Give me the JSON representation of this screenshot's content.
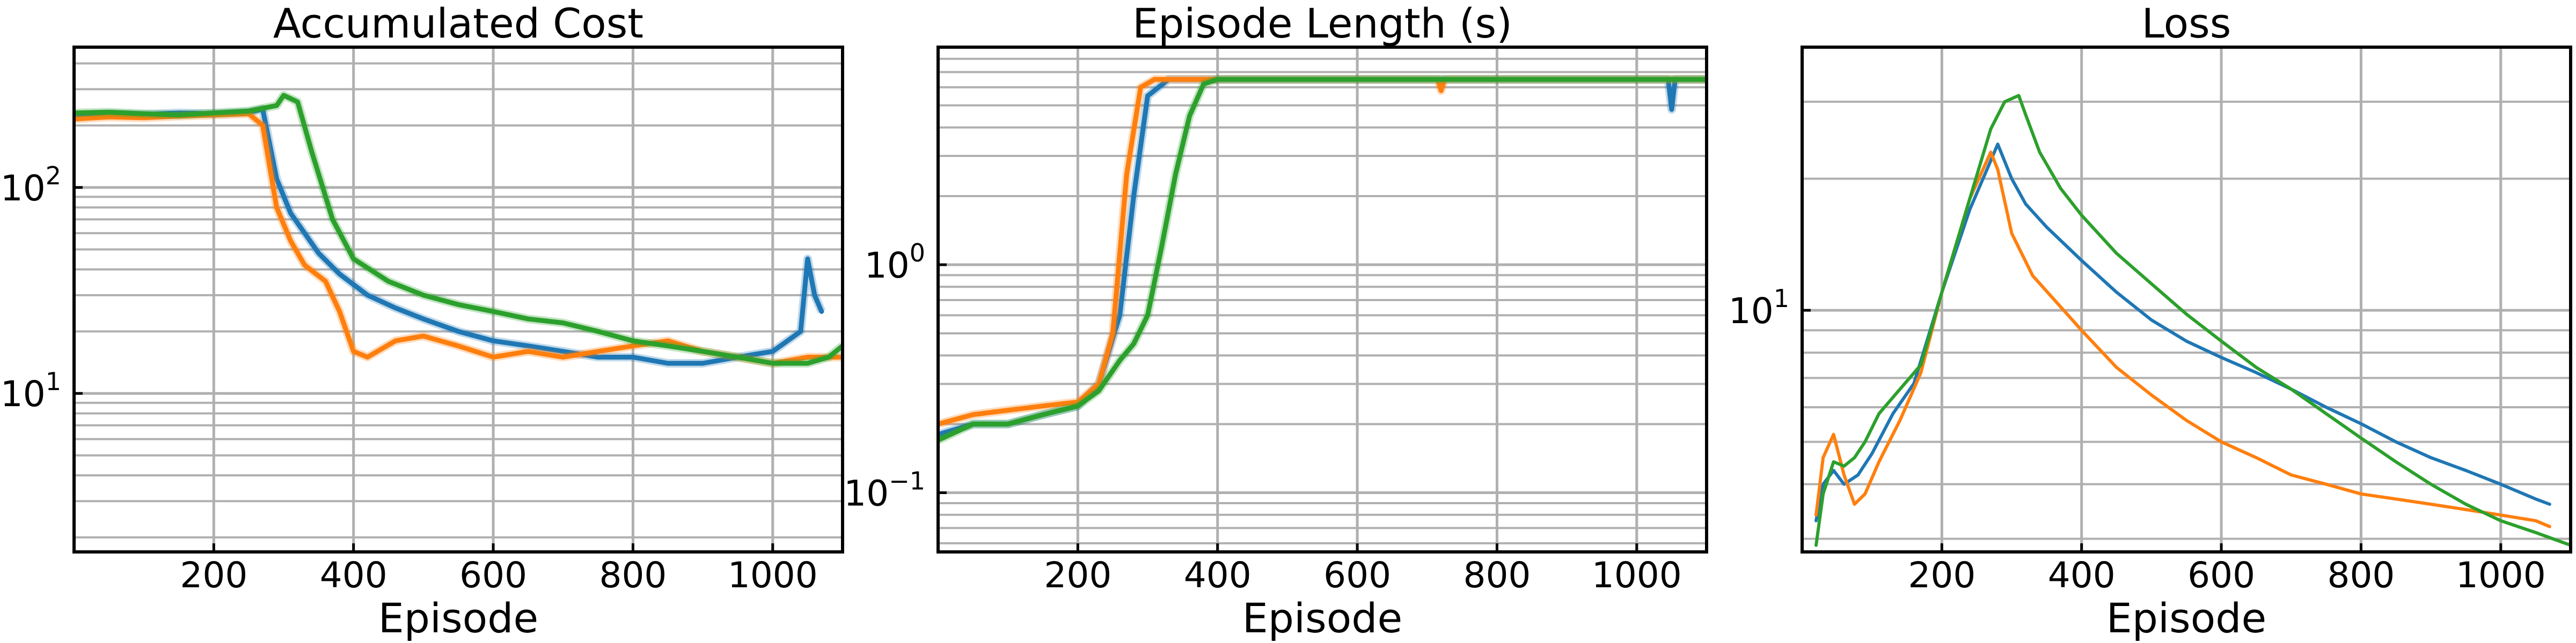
{
  "colors": {
    "c0": "#1f77b4",
    "c1": "#ff7f0e",
    "c2": "#2ca02c",
    "grid": "#b0b0b0",
    "frame": "#000000"
  },
  "chart_data": [
    {
      "type": "line",
      "title": "Accumulated Cost",
      "xlabel": "Episode",
      "ylabel": "",
      "yscale": "log",
      "xlim": [
        0,
        1100
      ],
      "ylim": [
        1.7,
        480
      ],
      "xticks": [
        200,
        400,
        600,
        800,
        1000
      ],
      "yticks": [
        {
          "value": 10,
          "base": "10",
          "exp": "1"
        },
        {
          "value": 100,
          "base": "10",
          "exp": "2"
        }
      ],
      "grid": true,
      "legend": "none",
      "series": [
        {
          "color": "#1f77b4",
          "x": [
            0,
            50,
            100,
            150,
            200,
            250,
            270,
            290,
            310,
            330,
            350,
            380,
            420,
            460,
            500,
            550,
            600,
            650,
            700,
            750,
            800,
            850,
            900,
            950,
            1000,
            1040,
            1050,
            1060,
            1070
          ],
          "y": [
            225,
            228,
            226,
            230,
            228,
            232,
            240,
            110,
            75,
            60,
            48,
            38,
            30,
            26,
            23,
            20,
            18,
            17,
            16,
            15,
            15,
            14,
            14,
            15,
            16,
            20,
            45,
            30,
            25
          ]
        },
        {
          "color": "#ff7f0e",
          "x": [
            0,
            50,
            100,
            150,
            200,
            250,
            270,
            290,
            310,
            330,
            360,
            380,
            400,
            420,
            460,
            500,
            550,
            600,
            650,
            700,
            750,
            800,
            850,
            900,
            950,
            1000,
            1050,
            1100
          ],
          "y": [
            215,
            220,
            218,
            222,
            225,
            228,
            200,
            80,
            55,
            42,
            35,
            25,
            16,
            15,
            18,
            19,
            17,
            15,
            16,
            15,
            16,
            17,
            18,
            16,
            15,
            14,
            15,
            15
          ]
        },
        {
          "color": "#2ca02c",
          "x": [
            0,
            50,
            100,
            150,
            200,
            250,
            290,
            300,
            310,
            320,
            340,
            370,
            400,
            450,
            500,
            550,
            600,
            650,
            700,
            750,
            800,
            850,
            900,
            950,
            1000,
            1050,
            1080,
            1100
          ],
          "y": [
            230,
            232,
            228,
            225,
            230,
            235,
            250,
            280,
            270,
            260,
            150,
            70,
            45,
            35,
            30,
            27,
            25,
            23,
            22,
            20,
            18,
            17,
            16,
            15,
            14,
            14,
            15,
            17
          ]
        }
      ]
    },
    {
      "type": "line",
      "title": "Episode Length (s)",
      "xlabel": "Episode",
      "ylabel": "",
      "yscale": "log",
      "xlim": [
        0,
        1100
      ],
      "ylim": [
        0.055,
        9.0
      ],
      "xticks": [
        200,
        400,
        600,
        800,
        1000
      ],
      "yticks": [
        {
          "value": 0.1,
          "base": "10",
          "exp": "−1"
        },
        {
          "value": 1,
          "base": "10",
          "exp": "0"
        }
      ],
      "grid": true,
      "legend": "none",
      "series": [
        {
          "color": "#1f77b4",
          "x": [
            0,
            50,
            100,
            150,
            200,
            230,
            260,
            280,
            300,
            330,
            360,
            400,
            500,
            600,
            700,
            800,
            900,
            1000,
            1045,
            1050,
            1055,
            1100
          ],
          "y": [
            0.18,
            0.2,
            0.2,
            0.22,
            0.24,
            0.3,
            0.6,
            2.0,
            5.5,
            6.5,
            6.5,
            6.5,
            6.5,
            6.5,
            6.5,
            6.5,
            6.5,
            6.5,
            6.5,
            4.8,
            6.5,
            6.5
          ]
        },
        {
          "color": "#ff7f0e",
          "x": [
            0,
            50,
            100,
            150,
            200,
            230,
            250,
            270,
            290,
            310,
            330,
            360,
            400,
            500,
            600,
            700,
            715,
            720,
            725,
            800,
            900,
            1000,
            1100
          ],
          "y": [
            0.2,
            0.22,
            0.23,
            0.24,
            0.25,
            0.3,
            0.5,
            2.5,
            6.0,
            6.5,
            6.5,
            6.5,
            6.5,
            6.5,
            6.5,
            6.5,
            6.5,
            5.8,
            6.5,
            6.5,
            6.5,
            6.5,
            6.5
          ]
        },
        {
          "color": "#2ca02c",
          "x": [
            0,
            50,
            100,
            150,
            200,
            230,
            260,
            280,
            300,
            320,
            340,
            360,
            380,
            400,
            500,
            600,
            700,
            800,
            900,
            1000,
            1100
          ],
          "y": [
            0.17,
            0.2,
            0.2,
            0.22,
            0.24,
            0.28,
            0.38,
            0.45,
            0.6,
            1.2,
            2.5,
            4.5,
            6.2,
            6.5,
            6.5,
            6.5,
            6.5,
            6.5,
            6.5,
            6.5,
            6.5
          ]
        }
      ]
    },
    {
      "type": "line",
      "title": "Loss",
      "xlabel": "Episode",
      "ylabel": "",
      "yscale": "log",
      "xlim": [
        0,
        1100
      ],
      "ylim": [
        2.8,
        40
      ],
      "xticks": [
        200,
        400,
        600,
        800,
        1000
      ],
      "yticks": [
        {
          "value": 10,
          "base": "10",
          "exp": "1"
        }
      ],
      "grid": true,
      "legend": "none",
      "series": [
        {
          "color": "#1f77b4",
          "x": [
            20,
            30,
            45,
            60,
            80,
            100,
            130,
            160,
            200,
            240,
            270,
            280,
            300,
            320,
            350,
            400,
            450,
            500,
            550,
            600,
            650,
            700,
            750,
            800,
            850,
            900,
            950,
            1000,
            1050,
            1070
          ],
          "y": [
            3.3,
            4.0,
            4.3,
            4.0,
            4.2,
            4.7,
            5.8,
            6.8,
            11.0,
            17.0,
            22.0,
            24.0,
            20.0,
            17.5,
            15.5,
            13.0,
            11.0,
            9.5,
            8.5,
            7.8,
            7.2,
            6.6,
            6.0,
            5.5,
            5.0,
            4.6,
            4.3,
            4.0,
            3.7,
            3.6
          ]
        },
        {
          "color": "#ff7f0e",
          "x": [
            20,
            30,
            45,
            60,
            75,
            90,
            110,
            140,
            170,
            200,
            240,
            270,
            280,
            300,
            330,
            400,
            450,
            500,
            550,
            600,
            650,
            700,
            750,
            800,
            850,
            900,
            950,
            1000,
            1050,
            1070
          ],
          "y": [
            3.4,
            4.6,
            5.2,
            4.2,
            3.6,
            3.8,
            4.5,
            5.6,
            7.2,
            11.0,
            18.0,
            23.0,
            21.0,
            15.0,
            12.0,
            9.0,
            7.4,
            6.4,
            5.6,
            5.0,
            4.6,
            4.2,
            4.0,
            3.8,
            3.7,
            3.6,
            3.5,
            3.4,
            3.3,
            3.2
          ]
        },
        {
          "color": "#2ca02c",
          "x": [
            20,
            30,
            45,
            60,
            75,
            90,
            110,
            140,
            170,
            200,
            240,
            270,
            290,
            310,
            320,
            340,
            370,
            400,
            450,
            500,
            550,
            600,
            650,
            700,
            750,
            800,
            850,
            900,
            950,
            1000,
            1050,
            1100
          ],
          "y": [
            2.9,
            3.8,
            4.5,
            4.4,
            4.6,
            5.0,
            5.8,
            6.6,
            7.5,
            11.0,
            18.0,
            26.0,
            30.0,
            31.0,
            28.0,
            23.0,
            19.0,
            16.5,
            13.5,
            11.5,
            9.8,
            8.5,
            7.4,
            6.6,
            5.8,
            5.1,
            4.5,
            4.0,
            3.6,
            3.3,
            3.1,
            2.9
          ]
        }
      ]
    }
  ]
}
